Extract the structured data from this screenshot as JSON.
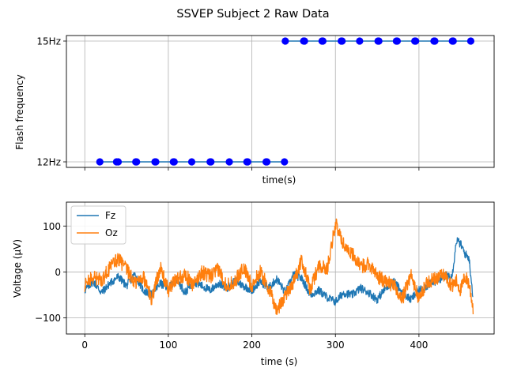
{
  "figure": {
    "title": "SSVEP Subject 2 Raw Data"
  },
  "chart_data": [
    {
      "type": "scatter",
      "panel": "top",
      "xlabel": "time(s)",
      "ylabel": "Flash frequency",
      "xlim": [
        -22,
        490
      ],
      "ylim": [
        0,
        1
      ],
      "x_tick_values": [
        0,
        100,
        200,
        300,
        400
      ],
      "x_tick_labels_shown": false,
      "y_ticks": [
        {
          "value": 0,
          "label": "12Hz"
        },
        {
          "value": 1,
          "label": "15Hz"
        }
      ],
      "grid": true,
      "line_color": "#1f77b4",
      "marker_color": "#0000ff",
      "series": [
        {
          "values_label": "12Hz",
          "y": 0,
          "x": [
            18,
            38,
            40,
            61,
            62,
            84,
            85,
            106,
            107,
            128,
            150,
            151,
            173,
            194,
            195,
            217,
            218,
            239
          ]
        },
        {
          "values_label": "15Hz",
          "y": 1,
          "x": [
            240,
            262,
            263,
            284,
            285,
            307,
            308,
            329,
            351,
            352,
            373,
            374,
            395,
            396,
            418,
            419,
            440,
            441,
            462
          ]
        }
      ]
    },
    {
      "type": "line",
      "panel": "bottom",
      "xlabel": "time (s)",
      "ylabel": "Voltage (µV)",
      "xlim": [
        -22,
        490
      ],
      "ylim": [
        -135,
        152
      ],
      "x_ticks": [
        0,
        100,
        200,
        300,
        400
      ],
      "y_ticks": [
        -100,
        0,
        100
      ],
      "grid": true,
      "legend": {
        "position": "top-left"
      },
      "series": [
        {
          "name": "Fz",
          "color": "#1f77b4",
          "x": [
            0,
            10,
            20,
            30,
            40,
            50,
            60,
            70,
            80,
            90,
            100,
            110,
            120,
            130,
            140,
            150,
            160,
            170,
            180,
            190,
            200,
            210,
            220,
            230,
            240,
            250,
            260,
            270,
            280,
            290,
            300,
            310,
            320,
            330,
            340,
            350,
            360,
            370,
            380,
            390,
            400,
            410,
            420,
            430,
            440,
            445,
            450,
            455,
            460,
            465
          ],
          "y": [
            -40,
            -20,
            -45,
            -25,
            -10,
            -30,
            -5,
            -40,
            -50,
            -25,
            -35,
            -15,
            -45,
            -20,
            -30,
            -40,
            -25,
            -35,
            -20,
            -30,
            -40,
            -20,
            -35,
            -15,
            -45,
            -5,
            -15,
            -50,
            -40,
            -55,
            -65,
            -45,
            -50,
            -35,
            -45,
            -60,
            -35,
            -20,
            -45,
            -60,
            -40,
            -30,
            -20,
            -10,
            -5,
            70,
            60,
            40,
            30,
            -60
          ]
        },
        {
          "name": "Oz",
          "color": "#ff7f0e",
          "x": [
            0,
            10,
            20,
            30,
            40,
            50,
            60,
            70,
            80,
            90,
            100,
            110,
            120,
            130,
            140,
            150,
            160,
            170,
            180,
            190,
            200,
            210,
            220,
            230,
            240,
            250,
            260,
            270,
            280,
            290,
            300,
            310,
            320,
            330,
            340,
            350,
            360,
            370,
            380,
            390,
            400,
            410,
            420,
            430,
            440,
            445,
            450,
            455,
            460,
            465
          ],
          "y": [
            -30,
            -10,
            -20,
            10,
            30,
            5,
            -25,
            -10,
            -60,
            10,
            -40,
            -15,
            -5,
            -30,
            0,
            -10,
            5,
            -30,
            -20,
            10,
            -30,
            0,
            -35,
            -85,
            -50,
            -20,
            25,
            -40,
            15,
            5,
            105,
            60,
            40,
            10,
            20,
            -10,
            -20,
            -30,
            -60,
            -5,
            -60,
            -20,
            -15,
            -5,
            -30,
            -20,
            -40,
            -10,
            -25,
            -80
          ]
        }
      ]
    }
  ]
}
